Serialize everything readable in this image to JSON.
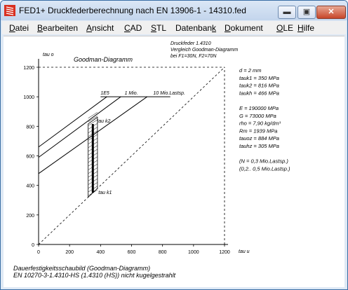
{
  "window": {
    "title": "FED1+  Druckfederberechnung nach EN 13906-1  -  14310.fed",
    "minimize_glyph": "▬",
    "maximize_glyph": "▣",
    "close_glyph": "✕",
    "app_icon": "spring-icon"
  },
  "menu": [
    {
      "pre": "",
      "ul": "D",
      "post": "atei"
    },
    {
      "pre": "",
      "ul": "B",
      "post": "earbeiten"
    },
    {
      "pre": "",
      "ul": "A",
      "post": "nsicht"
    },
    {
      "pre": "",
      "ul": "C",
      "post": "AD"
    },
    {
      "pre": "",
      "ul": "S",
      "post": "TL"
    },
    {
      "pre": "Datenban",
      "ul": "k",
      "post": ""
    },
    {
      "pre": "",
      "ul": "D",
      "post": "okument"
    },
    {
      "pre": "",
      "ul": "O",
      "post": "LE"
    },
    {
      "pre": "",
      "ul": "H",
      "post": "ilfe"
    }
  ],
  "chart_data": {
    "type": "line",
    "title": "Goodman-Diagramm",
    "xlabel": "tau u",
    "ylabel": "tau o",
    "xlim": [
      0,
      1200
    ],
    "ylim": [
      0,
      1200
    ],
    "x_ticks": [
      "0",
      "200",
      "400",
      "600",
      "800",
      "1000",
      "1200"
    ],
    "y_ticks": [
      "0",
      "200",
      "400",
      "600",
      "800",
      "1000",
      "1200"
    ],
    "grid": false,
    "series_labels": [
      "1E5",
      "1 Mio.",
      "10 Mio.Lastsp."
    ],
    "annotations": {
      "tau_k2": "tau k2",
      "tau_k1": "tau k1"
    },
    "header": [
      "Druckfeder 1.4310",
      "Vergleich Goodman-Diagramm",
      "bei F1=30N, F2=70N"
    ],
    "params": [
      "d  = 2 mm",
      "tauk1 =  350 MPa",
      "tauk2 =  816 MPa",
      "taukh =  466 MPa",
      "",
      "E = 190000 MPa",
      "G =  73000 MPa",
      "rho =  7,90 kg/dm³",
      "Rm =  1939 MPa",
      "tauoz =  884 MPa",
      "tauhz =  305 MPa",
      "",
      "(N = 0,3 Mio.Lastsp.)",
      "(0,2.. 0,5 Mio.Lastsp.)"
    ],
    "footer": [
      "Dauerfestigkeitsschaubild (Goodman-Diagramm)",
      "EN 10270-3-1.4310-HS (1.4310 (HS)) nicht kugelgestrahlt"
    ],
    "tau_k1": 350,
    "tau_k2": 816,
    "lines": [
      {
        "x": [
          0,
          440
        ],
        "y": [
          660,
          1000
        ]
      },
      {
        "x": [
          0,
          530
        ],
        "y": [
          590,
          1000
        ]
      },
      {
        "x": [
          0,
          700
        ],
        "y": [
          480,
          1000
        ]
      }
    ],
    "top_segment": {
      "x": [
        400,
        850
      ],
      "y": [
        1000,
        1000
      ]
    },
    "band": {
      "x": [
        320,
        380
      ]
    },
    "bold_line": {
      "x": 350,
      "y": [
        350,
        816
      ]
    }
  }
}
